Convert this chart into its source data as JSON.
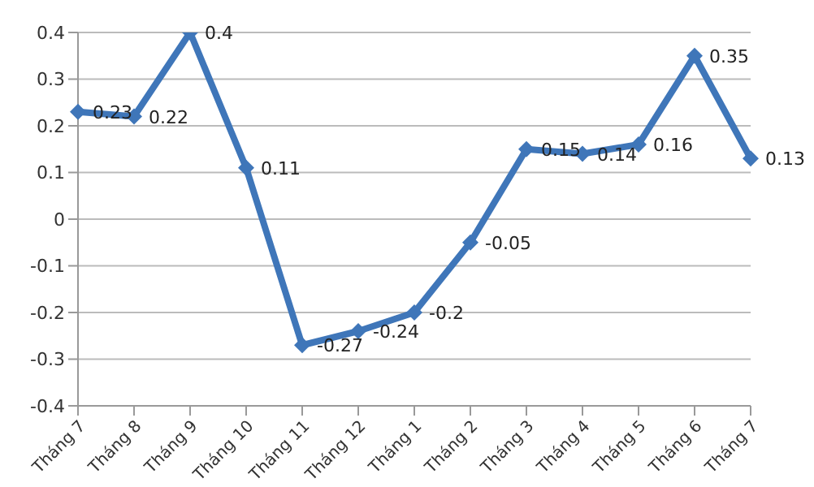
{
  "chart_data": {
    "type": "line",
    "categories": [
      "Tháng 7",
      "Tháng 8",
      "Tháng 9",
      "Tháng 10",
      "Tháng 11",
      "Tháng 12",
      "Tháng 1",
      "Tháng 2",
      "Tháng 3",
      "Tháng 4",
      "Tháng 5",
      "Tháng 6",
      "Tháng 7"
    ],
    "series": [
      {
        "color": "#3f76b9",
        "values": [
          0.23,
          0.22,
          0.4,
          0.11,
          -0.27,
          -0.24,
          -0.2,
          -0.05,
          0.15,
          0.14,
          0.16,
          0.35,
          0.13
        ]
      }
    ],
    "ylim": [
      -0.4,
      0.4
    ],
    "yticks": [
      -0.4,
      -0.3,
      -0.2,
      -0.1,
      0,
      0.1,
      0.2,
      0.3,
      0.4
    ],
    "grid": "y",
    "marker": "diamond",
    "data_labels": true
  }
}
